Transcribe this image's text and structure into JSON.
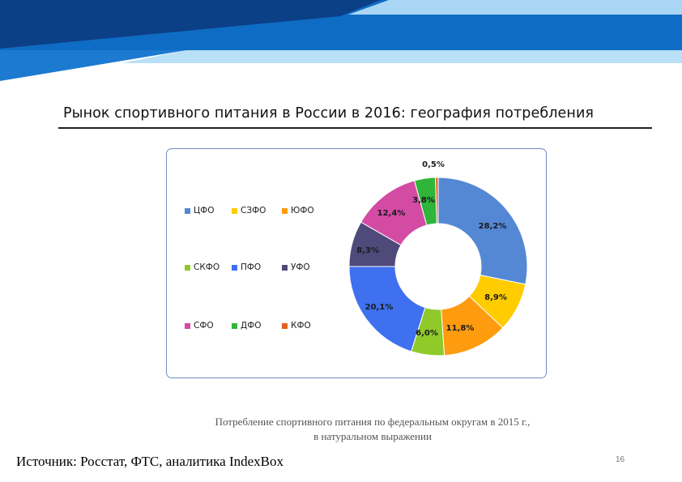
{
  "slide": {
    "title": "Рынок спортивного питания в России в 2016: география потребления",
    "caption_line1": "Потребление спортивного питания по федеральным округам в 2015 г.,",
    "caption_line2": "в натуральном выражении",
    "source": "Источник: Росстат, ФТС, аналитика IndexBox",
    "page_number": "16"
  },
  "colors": {
    "banner_dark": "#0a4d9c",
    "banner_mid": "#1a73c8",
    "banner_light": "#9fd0f2",
    "frame_border": "#6d8fc4"
  },
  "chart_data": {
    "type": "pie",
    "donut": true,
    "title": "",
    "legend_position": "left",
    "categories": [
      "ЦФО",
      "СЗФО",
      "ЮФО",
      "СКФО",
      "ПФО",
      "УФО",
      "СФО",
      "ДФО",
      "КФО"
    ],
    "values": [
      28.2,
      8.9,
      11.8,
      6.0,
      20.1,
      8.3,
      12.4,
      3.8,
      0.5
    ],
    "labels": [
      "28,2%",
      "8,9%",
      "11,8%",
      "6,0%",
      "20,1%",
      "8,3%",
      "12,4%",
      "3,8%",
      "0,5%"
    ],
    "colors": [
      "#5588d4",
      "#ffcc00",
      "#ff9b0f",
      "#8fca2a",
      "#3e70f0",
      "#4f4a7a",
      "#d44ba4",
      "#2fb53a",
      "#e2621c"
    ]
  }
}
